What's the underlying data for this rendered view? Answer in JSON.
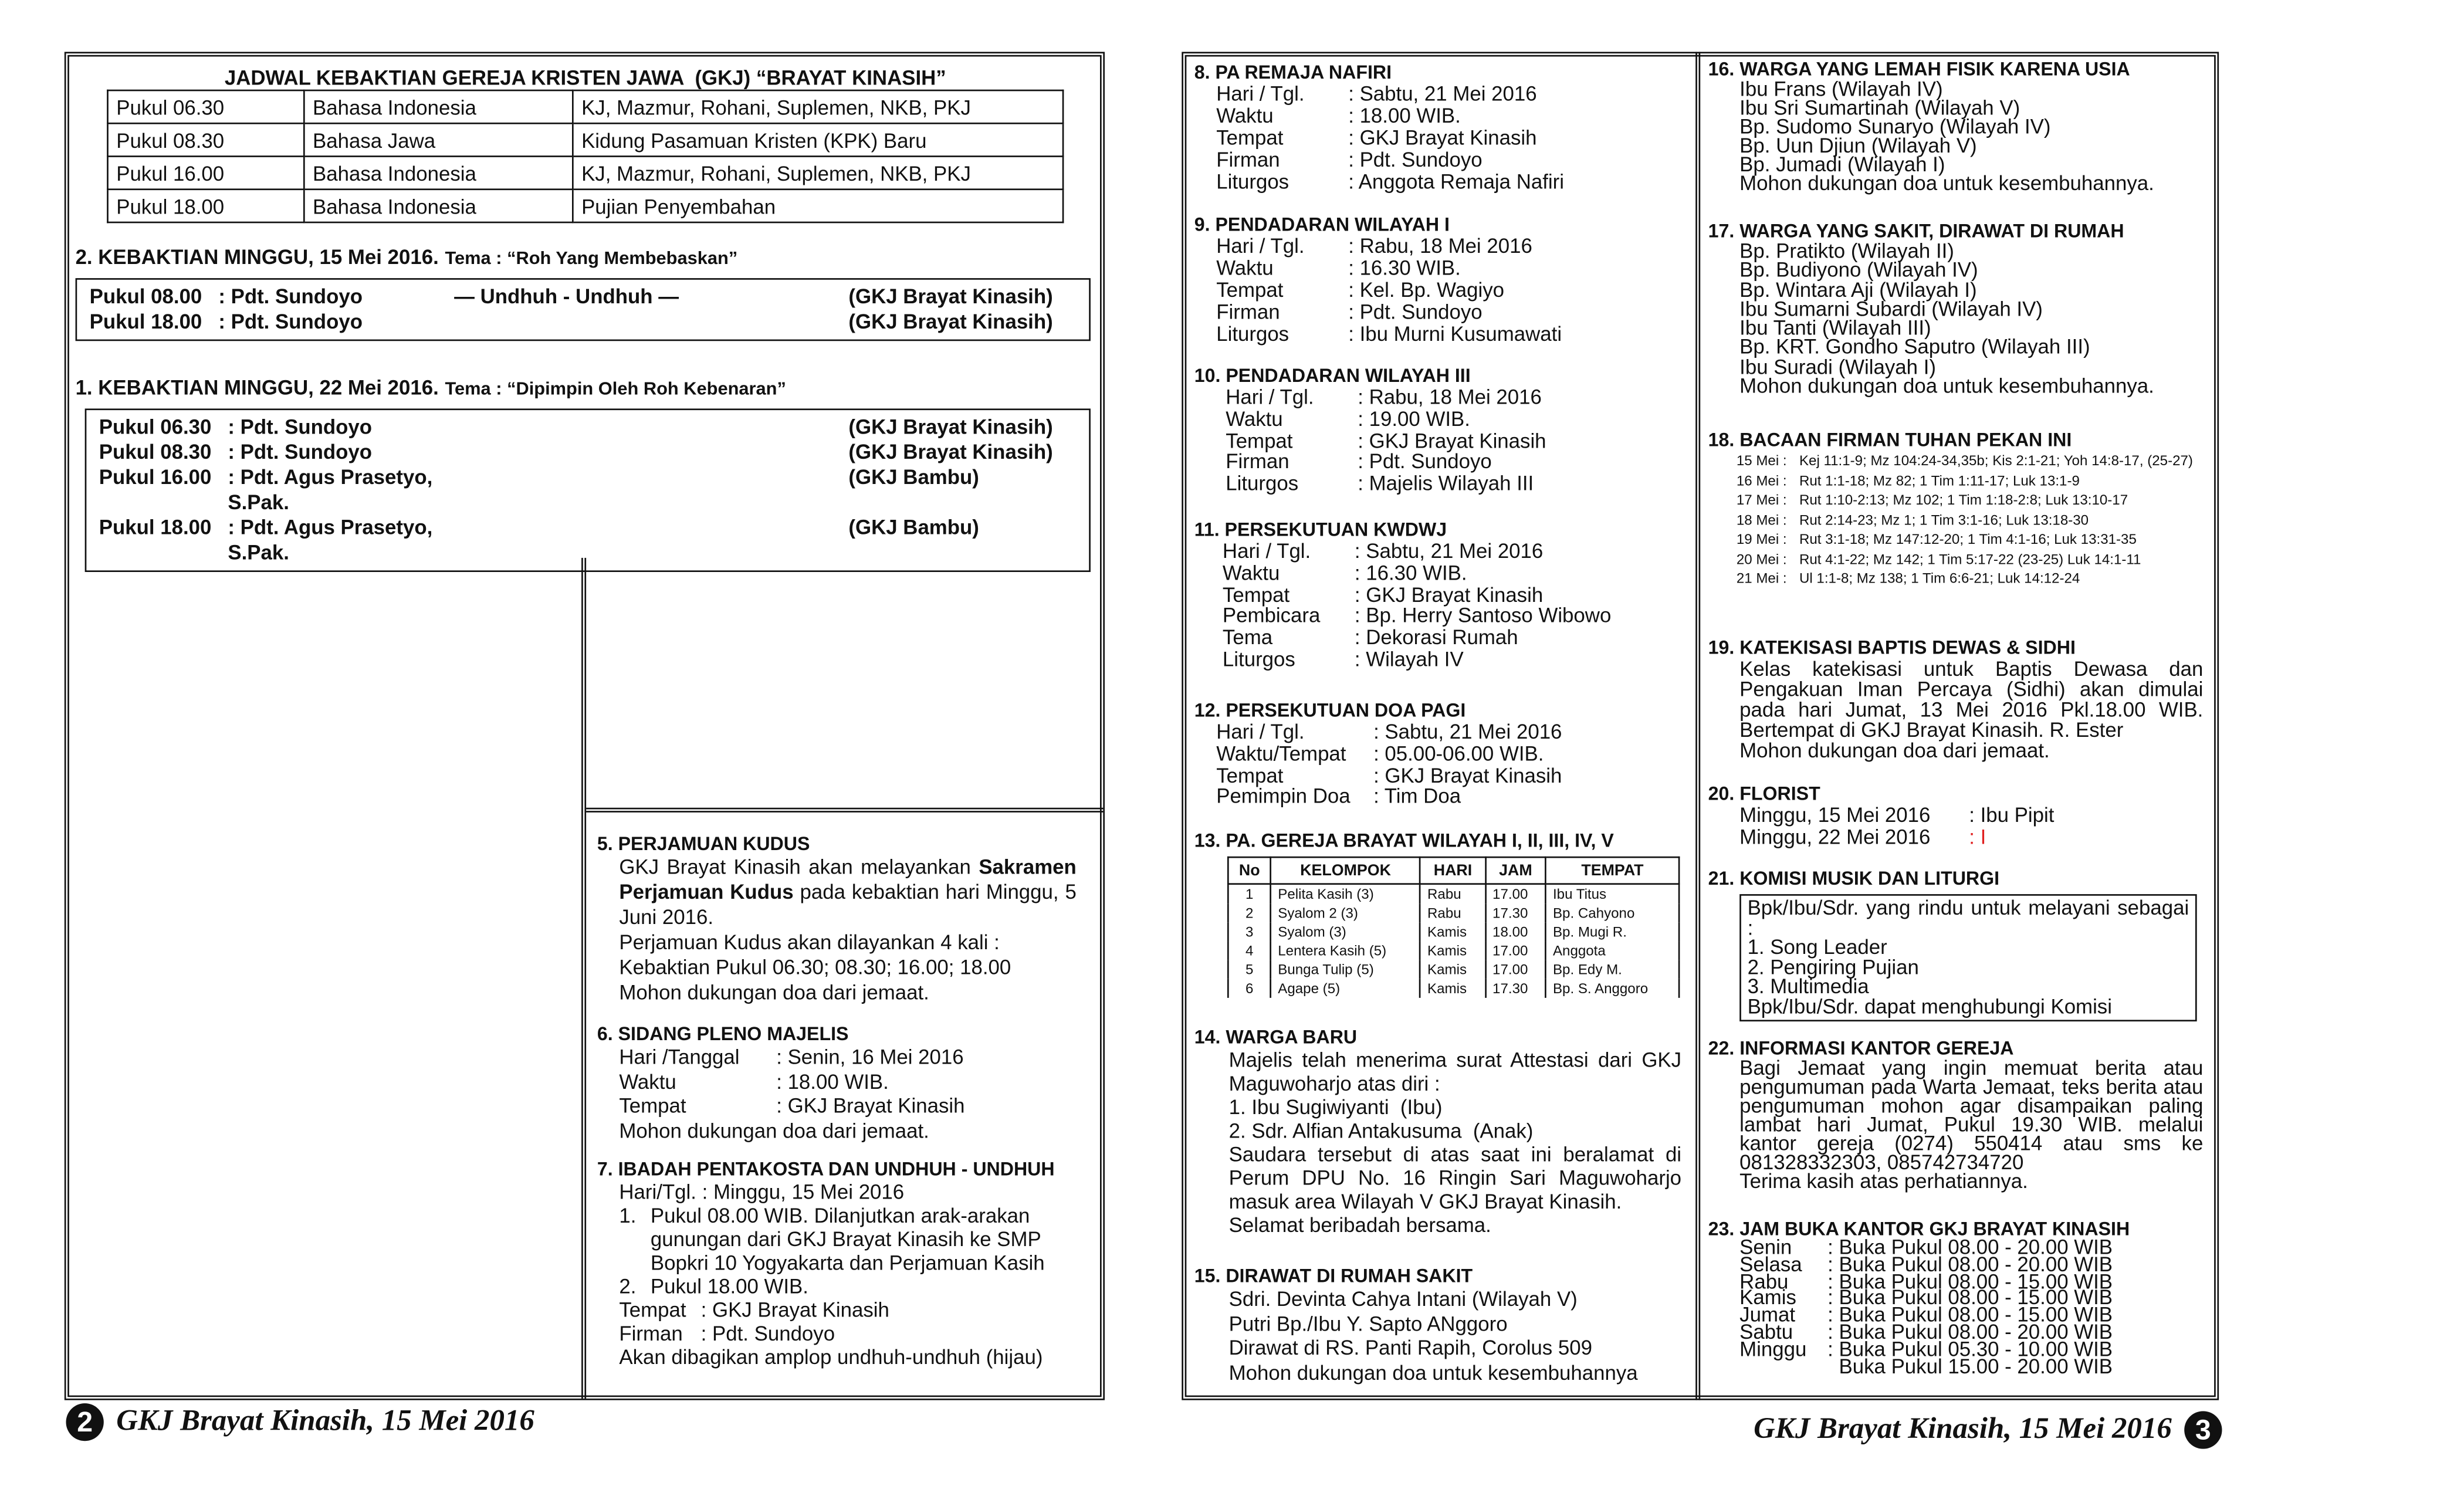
{
  "left_page": {
    "schedule": {
      "title": "JADWAL KEBAKTIAN GEREJA KRISTEN JAWA  (GKJ) “BRAYAT KINASIH”",
      "rows": [
        [
          "Pukul 06.30",
          "Bahasa Indonesia",
          "KJ, Mazmur,  Rohani,  Suplemen, NKB, PKJ"
        ],
        [
          "Pukul 08.30",
          "Bahasa Jawa",
          "Kidung Pasamuan Kristen (KPK) Baru"
        ],
        [
          "Pukul 16.00",
          "Bahasa Indonesia",
          "KJ, Mazmur,  Rohani,  Suplemen, NKB, PKJ"
        ],
        [
          "Pukul 18.00",
          "Bahasa Indonesia",
          "Pujian Penyembahan"
        ]
      ]
    },
    "services": [
      {
        "heading": "2. KEBAKTIAN MINGGU, 15 Mei 2016.",
        "theme_label": "Tema : ",
        "theme": "“Roh Yang Membebaskan”",
        "rows": [
          {
            "time": "Pukul 08.00",
            "preacher": ": Pdt. Sundoyo",
            "note": "— Undhuh - Undhuh —",
            "place": "(GKJ Brayat Kinasih)"
          },
          {
            "time": "Pukul 18.00",
            "preacher": ": Pdt. Sundoyo",
            "place": "(GKJ Brayat Kinasih)"
          }
        ]
      },
      {
        "heading": "1. KEBAKTIAN MINGGU, 22 Mei 2016.",
        "theme_label": "Tema : ",
        "theme": "“Dipimpin Oleh Roh Kebenaran”",
        "rows": [
          {
            "time": "Pukul 06.30",
            "preacher": ": Pdt. Sundoyo",
            "place": "(GKJ Brayat Kinasih)"
          },
          {
            "time": "Pukul 08.30",
            "preacher": ": Pdt. Sundoyo",
            "place": "(GKJ Brayat Kinasih)"
          },
          {
            "time": "Pukul 16.00",
            "preacher": ": Pdt. Agus Prasetyo, S.Pak.",
            "place": "(GKJ Bambu)"
          },
          {
            "time": "Pukul 18.00",
            "preacher": ": Pdt. Agus Prasetyo, S.Pak.",
            "place": "(GKJ Bambu)"
          }
        ]
      }
    ],
    "sections": [
      {
        "heading": "5. PERJAMUAN KUDUS",
        "body": [
          {
            "p": [
              {
                "text": "GKJ Brayat Kinasih akan melayankan "
              },
              {
                "text": "Sakramen Perjamuan Kudus",
                "bold": true
              },
              {
                "text": " pada kebaktian hari Minggu, 5 Juni 2016."
              }
            ]
          },
          "Perjamuan Kudus akan dilayankan 4 kali :",
          "Kebaktian Pukul 06.30; 08.30; 16.00; 18.00",
          "Mohon dukungan doa dari jemaat."
        ]
      },
      {
        "heading": "6. SIDANG PLENO MAJELIS",
        "body": [
          [
            "Hari /Tanggal",
            ": Senin, 16 Mei 2016"
          ],
          [
            "Waktu",
            ": 18.00 WIB."
          ],
          [
            "Tempat",
            ": GKJ Brayat Kinasih"
          ],
          "Mohon dukungan doa dari jemaat."
        ]
      },
      {
        "heading": "7. IBADAH PENTAKOSTA DAN UNDHUH - UNDHUH",
        "body": [
          "Hari/Tgl. : Minggu, 15 Mei 2016",
          {
            "li": "1.",
            "text": "Pukul 08.00 WIB. Dilanjutkan arak-arakan gunungan dari GKJ Brayat Kinasih ke SMP Bopkri 10 Yogyakarta dan Perjamuan Kasih"
          },
          {
            "li": "2.",
            "text": "Pukul 18.00 WIB."
          },
          [
            "Tempat",
            ": GKJ Brayat Kinasih"
          ],
          [
            "Firman",
            ": Pdt. Sundoyo"
          ],
          "Akan dibagikan amplop undhuh-undhuh (hijau)"
        ]
      }
    ],
    "footer": {
      "page_number": "2",
      "text": "GKJ Brayat Kinasih, 15 Mei 2016"
    }
  },
  "right_page": {
    "sections": [
      {
        "heading": "8. PA REMAJA NAFIRI",
        "body": [
          [
            "Hari / Tgl.",
            ": Sabtu, 21 Mei 2016"
          ],
          [
            "Waktu",
            ": 18.00 WIB."
          ],
          [
            "Tempat",
            ": GKJ Brayat Kinasih"
          ],
          [
            "Firman",
            ": Pdt. Sundoyo"
          ],
          [
            "Liturgos",
            ": Anggota Remaja Nafiri"
          ]
        ]
      },
      {
        "heading": "9. PENDADARAN WILAYAH I",
        "body": [
          [
            "Hari / Tgl.",
            ": Rabu, 18 Mei 2016"
          ],
          [
            "Waktu",
            ": 16.30 WIB."
          ],
          [
            "Tempat",
            ": Kel. Bp. Wagiyo"
          ],
          [
            "Firman",
            ": Pdt. Sundoyo"
          ],
          [
            "Liturgos",
            ": Ibu Murni Kusumawati"
          ]
        ]
      },
      {
        "heading": "10. PENDADARAN WILAYAH III",
        "body": [
          [
            "Hari / Tgl.",
            ": Rabu, 18 Mei 2016"
          ],
          [
            "Waktu",
            ": 19.00 WIB."
          ],
          [
            "Tempat",
            ": GKJ Brayat Kinasih"
          ],
          [
            "Firman",
            ": Pdt. Sundoyo"
          ],
          [
            "Liturgos",
            ": Majelis Wilayah III"
          ]
        ]
      },
      {
        "heading": "11. PERSEKUTUAN KWDWJ",
        "body": [
          [
            "Hari / Tgl.",
            ": Sabtu, 21 Mei 2016"
          ],
          [
            "Waktu",
            ": 16.30 WIB."
          ],
          [
            "Tempat",
            ": GKJ Brayat Kinasih"
          ],
          [
            "Pembicara",
            ": Bp. Herry Santoso Wibowo"
          ],
          [
            "Tema",
            ": Dekorasi Rumah"
          ],
          [
            "Liturgos",
            ": Wilayah IV"
          ]
        ]
      },
      {
        "heading": "12. PERSEKUTUAN DOA PAGI",
        "body": [
          [
            "Hari / Tgl.",
            ": Sabtu, 21 Mei 2016"
          ],
          [
            "Waktu/Tempat",
            ": 05.00-06.00 WIB."
          ],
          [
            "Tempat",
            ": GKJ Brayat Kinasih"
          ],
          [
            "Pemimpin Doa",
            ": Tim Doa"
          ]
        ]
      },
      {
        "heading": "13. PA. GEREJA BRAYAT WILAYAH I, II, III, IV, V",
        "table": {
          "header": [
            "No",
            "KELOMPOK",
            "HARI",
            "JAM",
            "TEMPAT"
          ],
          "rows": [
            [
              "1",
              "Pelita Kasih (3)",
              "Rabu",
              "17.00",
              "Ibu Titus"
            ],
            [
              "2",
              "Syalom 2 (3)",
              "Rabu",
              "17.30",
              "Bp. Cahyono"
            ],
            [
              "3",
              "Syalom (3)",
              "Kamis",
              "18.00",
              "Bp. Mugi R."
            ],
            [
              "4",
              "Lentera Kasih (5)",
              "Kamis",
              "17.00",
              "Anggota"
            ],
            [
              "5",
              "Bunga Tulip (5)",
              "Kamis",
              "17.00",
              "Bp. Edy M."
            ],
            [
              "6",
              "Agape (5)",
              "Kamis",
              "17.30",
              "Bp. S. Anggoro"
            ]
          ]
        }
      },
      {
        "heading": "14. WARGA BARU",
        "body": [
          {
            "p": [
              {
                "text": "Majelis telah menerima surat Attestasi dari GKJ Maguwoharjo atas diri :"
              }
            ]
          },
          "1. Ibu Sugiwiyanti  (Ibu)",
          "2. Sdr. Alfian Antakusuma  (Anak)",
          {
            "p": [
              {
                "text": "Saudara tersebut di atas saat ini beralamat di Perum DPU No. 16 Ringin Sari Maguwoharjo masuk area Wilayah V GKJ Brayat Kinasih."
              }
            ]
          },
          "Selamat beribadah bersama."
        ]
      },
      {
        "heading": "15. DIRAWAT DI RUMAH SAKIT",
        "body": [
          "Sdri. Devinta Cahya Intani (Wilayah V)",
          "Putri Bp./Ibu Y. Sapto ANggoro",
          "Dirawat di RS. Panti Rapih, Corolus 509",
          "Mohon dukungan doa untuk kesembuhannya"
        ]
      },
      {
        "heading": "16. WARGA YANG LEMAH FISIK KARENA USIA",
        "body": [
          "Ibu Frans (Wilayah IV)",
          "Ibu Sri Sumartinah (Wilayah V)",
          "Bp. Sudomo Sunaryo (Wilayah IV)",
          "Bp. Uun Djiun (Wilayah V)",
          "Bp. Jumadi (Wilayah I)",
          "Mohon dukungan doa untuk kesembuhannya."
        ]
      },
      {
        "heading": "17. WARGA YANG SAKIT, DIRAWAT DI RUMAH",
        "body": [
          "Bp. Pratikto (Wilayah II)",
          "Bp. Budiyono (Wilayah IV)",
          "Bp. Wintara Aji (Wilayah I)",
          "Ibu Sumarni Subardi (Wilayah IV)",
          "Ibu Tanti (Wilayah III)",
          "Bp. KRT. Gondho Saputro (Wilayah III)",
          "Ibu Suradi (Wilayah I)",
          "Mohon dukungan doa untuk kesembuhannya."
        ]
      },
      {
        "heading": "18. BACAAN FIRMAN TUHAN PEKAN INI",
        "body": [
          [
            "15 Mei :",
            "Kej 11:1-9; Mz 104:24-34,35b; Kis 2:1-21; Yoh 14:8-17, (25-27)"
          ],
          [
            "16 Mei :",
            "Rut 1:1-18; Mz 82; 1 Tim 1:11-17; Luk 13:1-9"
          ],
          [
            "17 Mei :",
            "Rut 1:10-2:13; Mz 102; 1 Tim 1:18-2:8; Luk 13:10-17"
          ],
          [
            "18 Mei :",
            "Rut 2:14-23; Mz 1; 1 Tim 3:1-16; Luk 13:18-30"
          ],
          [
            "19 Mei :",
            "Rut 3:1-18; Mz 147:12-20; 1 Tim 4:1-16; Luk 13:31-35"
          ],
          [
            "20 Mei :",
            "Rut 4:1-22; Mz 142; 1 Tim 5:17-22 (23-25) Luk 14:1-11"
          ],
          [
            "21 Mei :",
            "Ul 1:1-8; Mz 138; 1 Tim 6:6-21; Luk 14:12-24"
          ]
        ]
      },
      {
        "heading": "19. KATEKISASI BAPTIS DEWAS & SIDHI",
        "body": [
          {
            "p": [
              {
                "text": "Kelas katekisasi untuk Baptis  Dewasa dan Pengakuan Iman Percaya (Sidhi) akan dimulai pada hari Jumat, 13 Mei 2016 Pkl.18.00 WIB. Bertempat di GKJ Brayat Kinasih. R. Ester"
              }
            ]
          },
          "Mohon dukungan doa dari jemaat."
        ]
      },
      {
        "heading": "20. FLORIST",
        "body": [
          [
            "Minggu, 15 Mei 2016",
            ": Ibu Pipit"
          ],
          {
            "k": "Minggu, 22 Mei 2016",
            "v": ": I",
            "color": "#e02020"
          }
        ]
      },
      {
        "heading": "21. KOMISI MUSIK DAN LITURGI",
        "boxed": true,
        "body": [
          {
            "p": [
              {
                "text": "Bpk/Ibu/Sdr. yang rindu untuk melayani sebagai :"
              }
            ]
          },
          "1. Song Leader",
          "2. Pengiring Pujian",
          "3. Multimedia",
          {
            "p": [
              {
                "text": "Bpk/Ibu/Sdr.  dapat  menghubungi  Komisi"
              }
            ]
          }
        ]
      },
      {
        "heading": "22. INFORMASI KANTOR GEREJA",
        "body": [
          {
            "p": [
              {
                "text": "Bagi Jemaat yang ingin memuat berita atau pengumuman pada Warta Jemaat, teks berita atau pengumuman mohon agar disampaikan paling lambat hari Jumat, Pukul 19.30 WIB. melalui kantor gereja (0274) 550414 atau sms ke 081328332303, 085742734720"
              }
            ]
          },
          "Terima kasih atas perhatiannya."
        ]
      },
      {
        "heading": "23. JAM BUKA KANTOR GKJ BRAYAT KINASIH",
        "body": [
          [
            "Senin",
            ": Buka Pukul 08.00 - 20.00 WIB"
          ],
          [
            "Selasa",
            ": Buka Pukul 08.00 - 20.00 WIB"
          ],
          [
            "Rabu",
            ": Buka Pukul 08.00 - 15.00 WIB"
          ],
          [
            "Kamis",
            ": Buka Pukul 08.00 - 15.00 WIB"
          ],
          [
            "Jumat",
            ": Buka Pukul 08.00 - 15.00 WIB"
          ],
          [
            "Sabtu",
            ": Buka Pukul 08.00 - 20.00 WIB"
          ],
          [
            "Minggu",
            ": Buka Pukul 05.30 - 10.00 WIB"
          ],
          [
            "  Buka Pukul 15.00 - 20.00 WIB"
          ]
        ]
      }
    ],
    "footer": {
      "page_number": "3",
      "text": "GKJ Brayat Kinasih, 15 Mei 2016"
    }
  }
}
